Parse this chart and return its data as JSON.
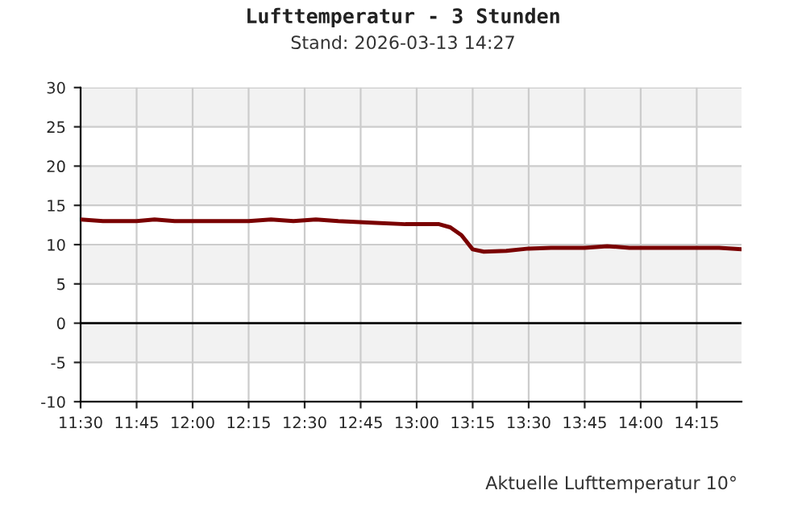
{
  "chart_data": {
    "type": "line",
    "title": "Lufttemperatur - 3 Stunden",
    "subtitle": "Stand: 2026-03-13 14:27",
    "annotations": [
      "Aktuelle Lufttemperatur 10°"
    ],
    "x": [
      11.5,
      11.6,
      11.75,
      11.83,
      11.92,
      12.25,
      12.35,
      12.45,
      12.55,
      12.65,
      12.8,
      12.95,
      13.1,
      13.15,
      13.2,
      13.25,
      13.3,
      13.4,
      13.5,
      13.6,
      13.75,
      13.85,
      13.95,
      14.2,
      14.35,
      14.45
    ],
    "series": [
      {
        "color": "#7a0000",
        "values": [
          13.2,
          13.0,
          13.0,
          13.2,
          13.0,
          13.0,
          13.2,
          13.0,
          13.2,
          13.0,
          12.8,
          12.6,
          12.6,
          12.2,
          11.2,
          9.4,
          9.1,
          9.2,
          9.5,
          9.6,
          9.6,
          9.8,
          9.6,
          9.6,
          9.6,
          9.4
        ]
      }
    ],
    "xlim": [
      11.5,
      14.45
    ],
    "xticks": [
      {
        "value": 11.5,
        "label": "11:30"
      },
      {
        "value": 11.75,
        "label": "11:45"
      },
      {
        "value": 12,
        "label": "12:00"
      },
      {
        "value": 12.25,
        "label": "12:15"
      },
      {
        "value": 12.5,
        "label": "12:30"
      },
      {
        "value": 12.75,
        "label": "12:45"
      },
      {
        "value": 13,
        "label": "13:00"
      },
      {
        "value": 13.25,
        "label": "13:15"
      },
      {
        "value": 13.5,
        "label": "13:30"
      },
      {
        "value": 13.75,
        "label": "13:45"
      },
      {
        "value": 14,
        "label": "14:00"
      },
      {
        "value": 14.25,
        "label": "14:15"
      }
    ],
    "ylim": [
      -10,
      30
    ],
    "yticks": [
      -10,
      -5,
      0,
      5,
      10,
      15,
      20,
      25,
      30
    ],
    "bands": [
      {
        "axis": "y",
        "from": 25,
        "to": 30,
        "color": "#f2f2f2"
      },
      {
        "axis": "y",
        "from": 15,
        "to": 20,
        "color": "#f2f2f2"
      },
      {
        "axis": "y",
        "from": 5,
        "to": 10,
        "color": "#f2f2f2"
      },
      {
        "axis": "y",
        "from": -5,
        "to": 0,
        "color": "#f2f2f2"
      }
    ],
    "ref_lines": [
      {
        "axis": "y",
        "value": 0,
        "color": "#000000"
      }
    ],
    "grid": true,
    "legend": false,
    "line_style": "solid",
    "marker": "none"
  }
}
